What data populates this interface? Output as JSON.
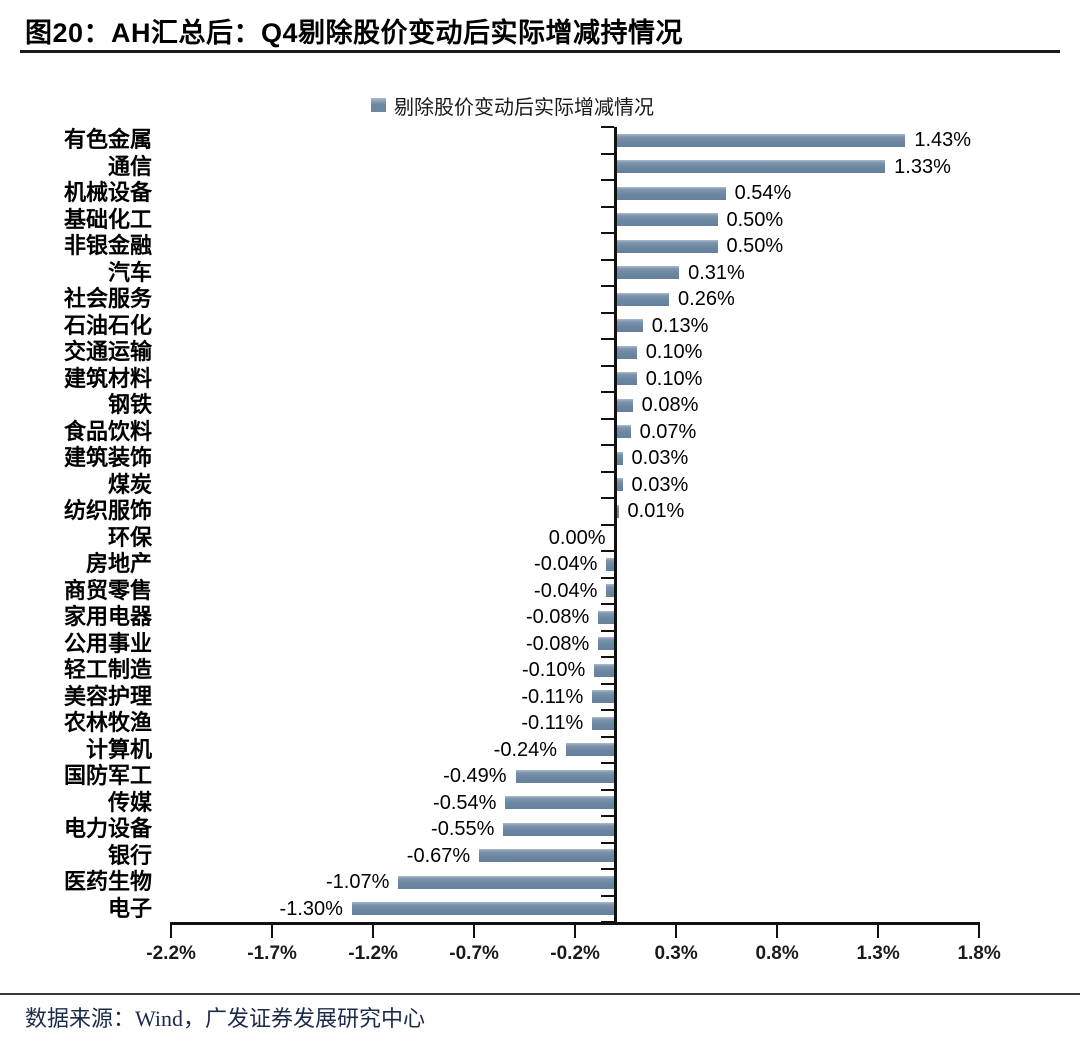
{
  "title": "图20：AH汇总后：Q4剔除股价变动后实际增减持情况",
  "legend": "剔除股价变动后实际增减情况",
  "source": "数据来源：Wind，广发证券发展研究中心",
  "colors": {
    "bar": "#6d87a2",
    "axis": "#111111",
    "title_text": "#000000",
    "source_text": "#1c2b4a"
  },
  "chart_data": {
    "type": "bar",
    "orientation": "horizontal",
    "title": "图20：AH汇总后：Q4剔除股价变动后实际增减持情况",
    "legend": [
      "剔除股价变动后实际增减情况"
    ],
    "legend_position": "top-center",
    "grid": false,
    "xlabel": "",
    "ylabel": "",
    "xlim": [
      -2.2,
      1.8
    ],
    "x_ticks": [
      -2.2,
      -1.7,
      -1.2,
      -0.7,
      -0.2,
      0.3,
      0.8,
      1.3,
      1.8
    ],
    "x_tick_labels": [
      "-2.2%",
      "-1.7%",
      "-1.2%",
      "-0.7%",
      "-0.2%",
      "0.3%",
      "0.8%",
      "1.3%",
      "1.8%"
    ],
    "categories": [
      "有色金属",
      "通信",
      "机械设备",
      "基础化工",
      "非银金融",
      "汽车",
      "社会服务",
      "石油石化",
      "交通运输",
      "建筑材料",
      "钢铁",
      "食品饮料",
      "建筑装饰",
      "煤炭",
      "纺织服饰",
      "环保",
      "房地产",
      "商贸零售",
      "家用电器",
      "公用事业",
      "轻工制造",
      "美容护理",
      "农林牧渔",
      "计算机",
      "国防军工",
      "传媒",
      "电力设备",
      "银行",
      "医药生物",
      "电子"
    ],
    "values": [
      1.43,
      1.33,
      0.54,
      0.5,
      0.5,
      0.31,
      0.26,
      0.13,
      0.1,
      0.1,
      0.08,
      0.07,
      0.03,
      0.03,
      0.01,
      0.0,
      -0.04,
      -0.04,
      -0.08,
      -0.08,
      -0.1,
      -0.11,
      -0.11,
      -0.24,
      -0.49,
      -0.54,
      -0.55,
      -0.67,
      -1.07,
      -1.3
    ],
    "value_labels": [
      "1.43%",
      "1.33%",
      "0.54%",
      "0.50%",
      "0.50%",
      "0.31%",
      "0.26%",
      "0.13%",
      "0.10%",
      "0.10%",
      "0.08%",
      "0.07%",
      "0.03%",
      "0.03%",
      "0.01%",
      "0.00%",
      "-0.04%",
      "-0.04%",
      "-0.08%",
      "-0.08%",
      "-0.10%",
      "-0.11%",
      "-0.11%",
      "-0.24%",
      "-0.49%",
      "-0.54%",
      "-0.55%",
      "-0.67%",
      "-1.07%",
      "-1.30%"
    ]
  }
}
